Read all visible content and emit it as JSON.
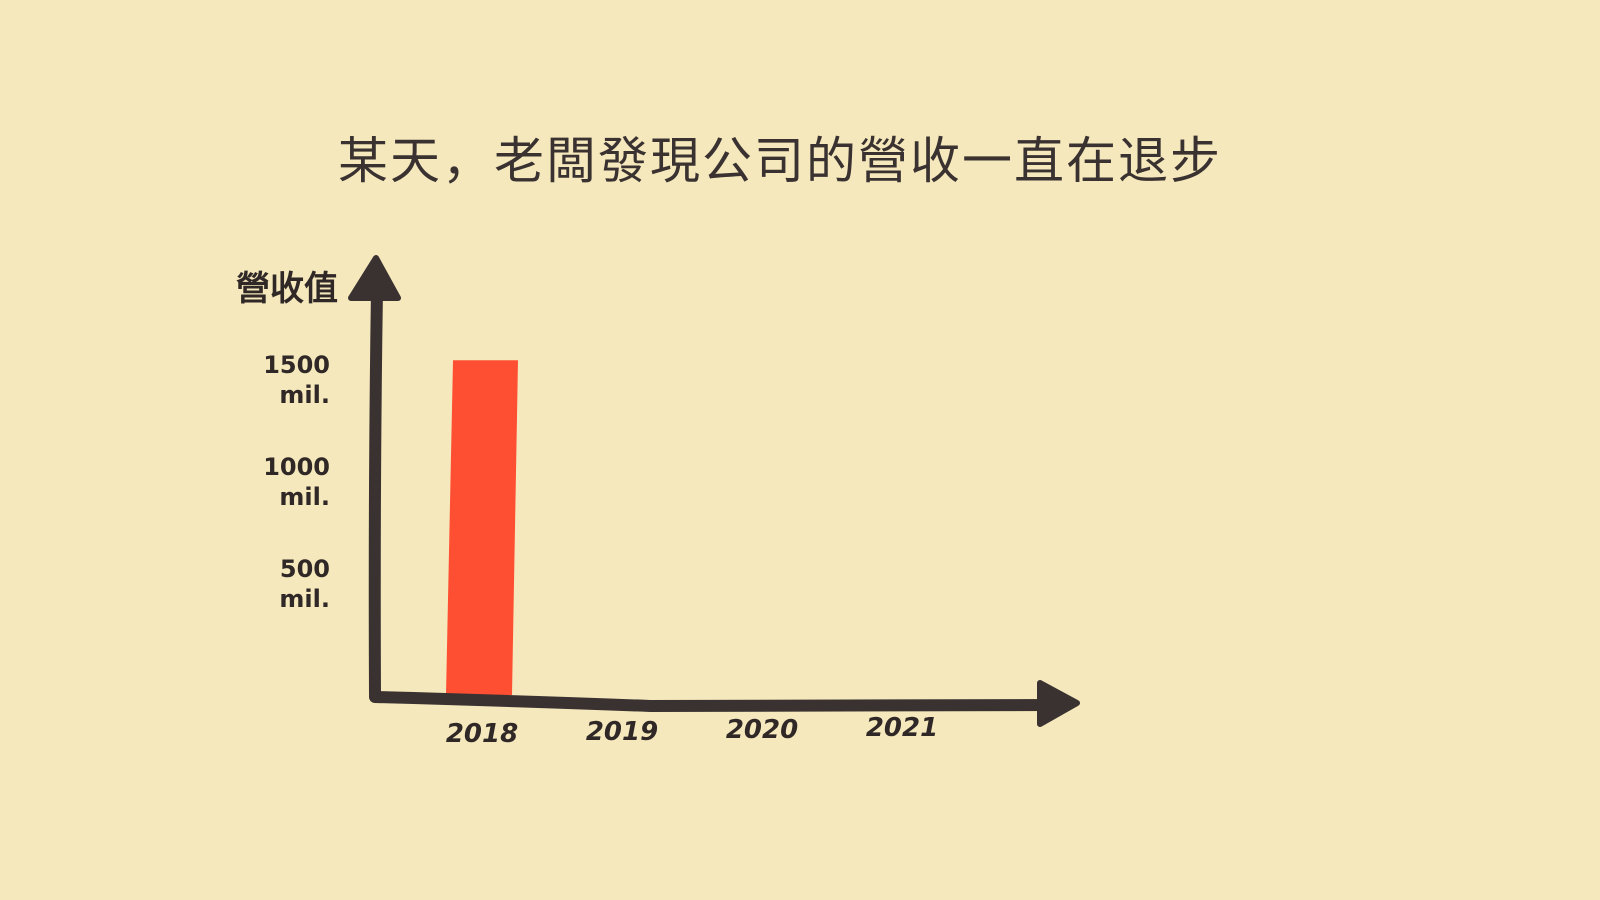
{
  "chart_data": {
    "type": "bar",
    "title": "某天，老闆發現公司的營收一直在退步",
    "ylabel": "營收值",
    "xlabel": "",
    "categories": [
      "2018",
      "2019",
      "2020",
      "2021"
    ],
    "values": [
      1650,
      null,
      null,
      null
    ],
    "ylim": [
      0,
      1700
    ],
    "yticks": [
      {
        "value": 500,
        "line1": "500",
        "line2": "mil."
      },
      {
        "value": 1000,
        "line1": "1000",
        "line2": "mil."
      },
      {
        "value": 1500,
        "line1": "1500",
        "line2": "mil."
      }
    ],
    "grid": false,
    "legend": "none",
    "colors": {
      "bar": "#ff4f33",
      "axis": "#3a3231",
      "background": "#f5e8bc"
    }
  }
}
